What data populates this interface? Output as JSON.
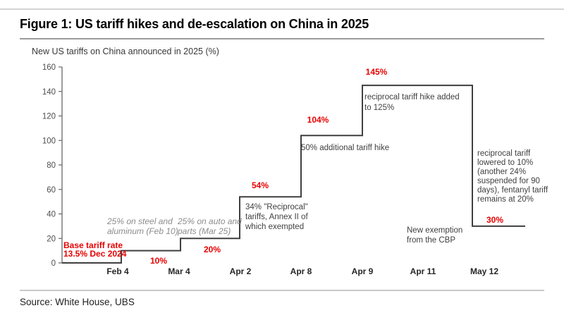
{
  "page": {
    "title": "Figure 1: US tariff hikes and de-escalation on China in 2025",
    "source": "Source: White House, UBS"
  },
  "colors": {
    "accent_red": "#e60000",
    "step_line": "#3f3f3f",
    "axis": "#666666",
    "muted_note_gray": "#8c8c8c",
    "note_black": "#404040"
  },
  "chart_data": {
    "type": "line",
    "subtype": "step-staircase",
    "title": "New US tariffs on China announced in 2025 (%)",
    "xlabel": "",
    "ylabel": "New US tariffs on China announced in 2025 (%)",
    "ylim": [
      0,
      160
    ],
    "ytick_step": 20,
    "grid": false,
    "legend": false,
    "x_labels": [
      "Feb 4",
      "Mar 4",
      "Apr 2",
      "Apr 8",
      "Apr 9",
      "Apr 11",
      "May 12"
    ],
    "series": [
      {
        "name": "New US tariffs on China announced in 2025 (%)",
        "step_values": [
          {
            "period": "before Feb 4",
            "value": 0
          },
          {
            "period": "Feb 4",
            "value": 10
          },
          {
            "period": "Mar 4",
            "value": 20
          },
          {
            "period": "Apr 2",
            "value": 54
          },
          {
            "period": "Apr 8",
            "value": 104
          },
          {
            "period": "Apr 9",
            "value": 145
          },
          {
            "period": "Apr 11",
            "value": 145
          },
          {
            "period": "May 12",
            "value": 30
          }
        ]
      }
    ],
    "value_labels": [
      "10%",
      "20%",
      "54%",
      "104%",
      "145%",
      "30%"
    ],
    "base_label": {
      "lines": [
        "Base tariff rate",
        "13.5% Dec 2024"
      ]
    },
    "annotations": {
      "steel": {
        "lines": [
          "25% on steel and",
          "aluminum (Feb 10)"
        ]
      },
      "auto": {
        "lines": [
          "25% on auto and",
          "parts (Mar 25)"
        ]
      },
      "reciprocal34": {
        "lines": [
          "34% \"Reciprocal\"",
          "tariffs, Annex II of",
          "which exempted"
        ]
      },
      "additional50": {
        "lines": [
          "50% additional tariff hike"
        ]
      },
      "hike125": {
        "lines": [
          "reciprocal tariff hike added",
          "to 125%"
        ]
      },
      "cbp": {
        "lines": [
          "New exemption",
          "from the CBP"
        ]
      },
      "may12": {
        "lines": [
          "reciprocal tariff",
          "lowered to 10%",
          "(another 24%",
          "suspended for 90",
          "days), fentanyl tariff",
          "remains at 20%"
        ]
      }
    }
  }
}
